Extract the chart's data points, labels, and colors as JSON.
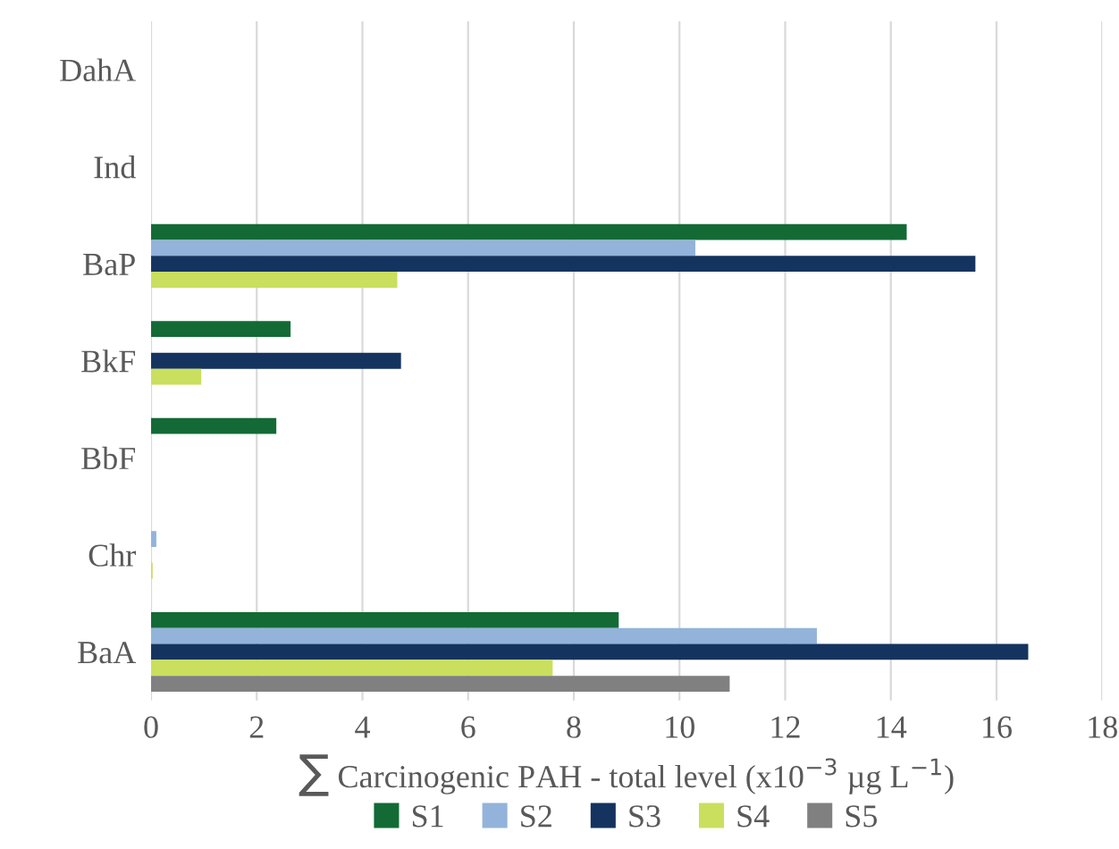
{
  "chart_data": {
    "type": "bar",
    "orientation": "horizontal",
    "categories": [
      "DahA",
      "Ind",
      "BaP",
      "BkF",
      "BbF",
      "Chr",
      "BaA"
    ],
    "xlabel": "∑ Carcinogenic PAH - total level (x10$^{−3}$ µg L$^{−1}$)",
    "series": [
      {
        "name": "S1",
        "color": "#136a35",
        "values": [
          null,
          null,
          14.3,
          2.64,
          2.37,
          null,
          8.85
        ]
      },
      {
        "name": "S2",
        "color": "#93b3da",
        "values": [
          null,
          null,
          10.3,
          null,
          null,
          0.1,
          12.6
        ]
      },
      {
        "name": "S3",
        "color": "#14345f",
        "values": [
          null,
          null,
          15.6,
          4.73,
          null,
          null,
          16.6
        ]
      },
      {
        "name": "S4",
        "color": "#cadf5d",
        "values": [
          null,
          null,
          4.66,
          0.95,
          null,
          0.03,
          7.6
        ]
      },
      {
        "name": "S5",
        "color": "#808080",
        "values": [
          null,
          null,
          null,
          null,
          null,
          null,
          10.95
        ]
      }
    ],
    "xlim": [
      0,
      18
    ],
    "xticks": [
      0,
      2,
      4,
      6,
      8,
      10,
      12,
      14,
      16,
      18
    ],
    "grid": "x",
    "legend": "bottom"
  }
}
